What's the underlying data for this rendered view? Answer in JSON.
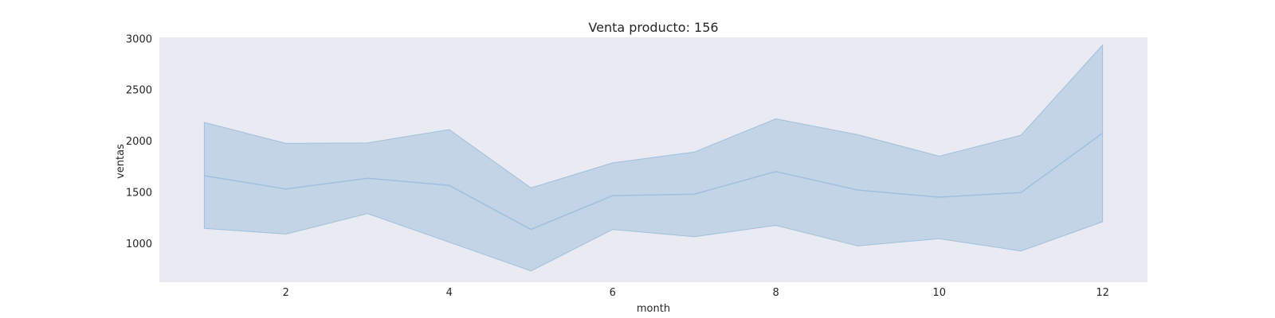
{
  "chart_data": {
    "type": "line",
    "title": "Venta producto: 156",
    "xlabel": "month",
    "ylabel": "ventas",
    "xlim": [
      0.45,
      12.55
    ],
    "ylim": [
      620,
      3010
    ],
    "xticks": [
      2,
      4,
      6,
      8,
      10,
      12
    ],
    "yticks": [
      1000,
      1500,
      2000,
      2500,
      3000
    ],
    "grid": false,
    "background_color": "#eaeaf2",
    "line_color": "#9ec0dd",
    "band_color": "#b3cbe2",
    "series": [
      {
        "x": [
          1,
          2,
          3,
          4,
          5,
          6,
          7,
          8,
          9,
          10,
          11,
          12
        ],
        "values": [
          1660,
          1530,
          1635,
          1565,
          1135,
          1465,
          1480,
          1700,
          1520,
          1450,
          1495,
          2075
        ],
        "ci_upper": [
          2180,
          1975,
          1980,
          2110,
          1540,
          1785,
          1890,
          2215,
          2060,
          1850,
          2055,
          2935
        ],
        "ci_lower": [
          1145,
          1090,
          1290,
          1010,
          730,
          1135,
          1065,
          1175,
          975,
          1045,
          925,
          1210
        ]
      }
    ]
  }
}
